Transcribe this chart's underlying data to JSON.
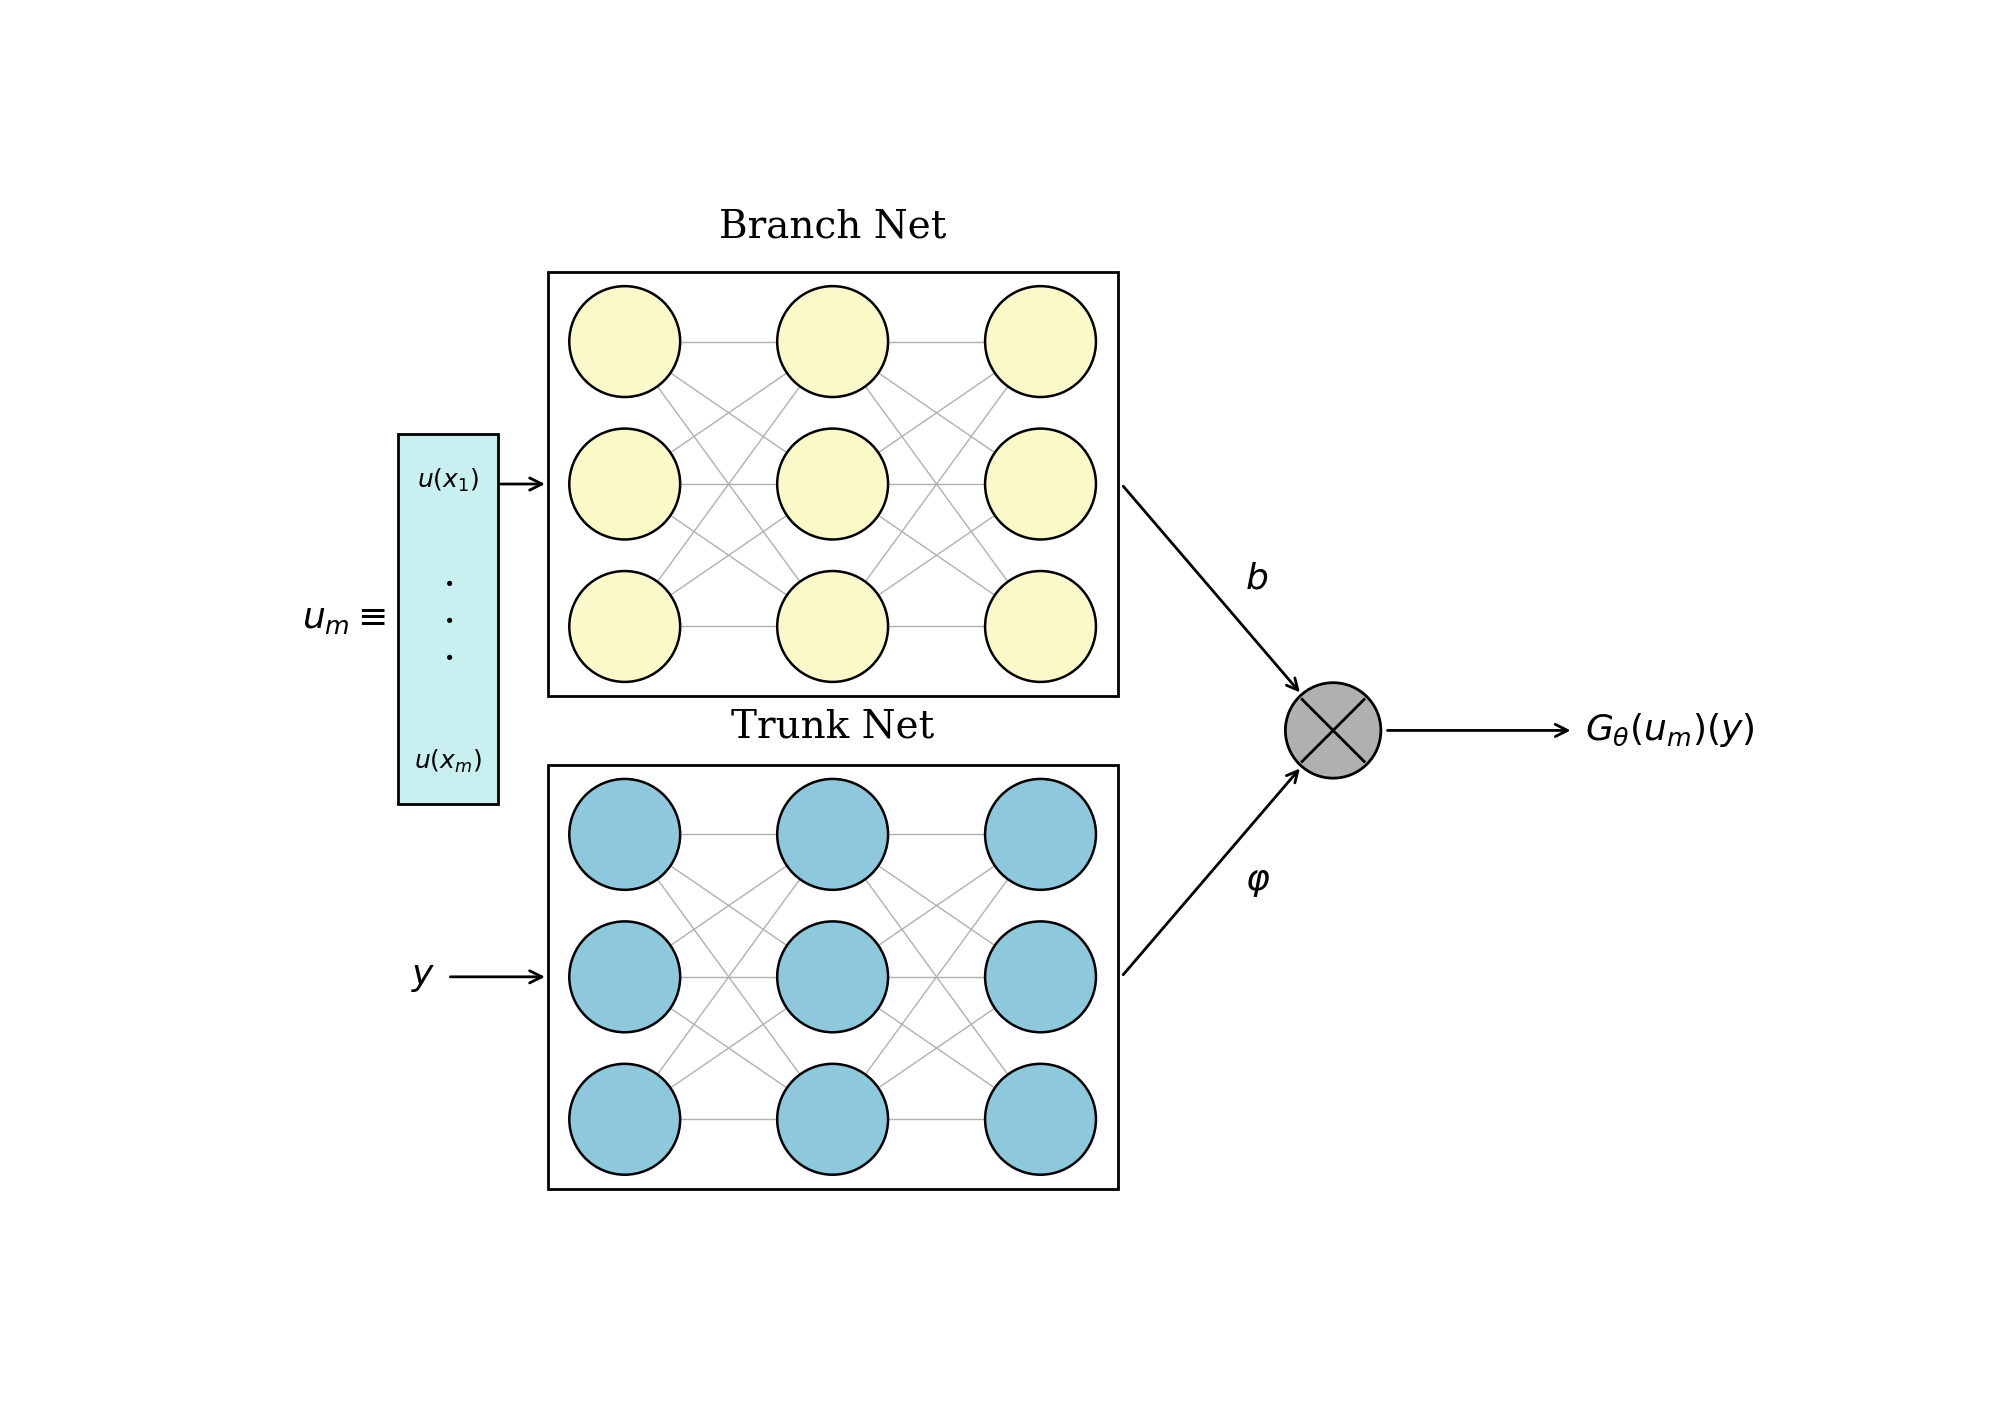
{
  "branch_net_label": "Branch Net",
  "trunk_net_label": "Trunk Net",
  "branch_node_color": "#FAFAC8",
  "trunk_node_color": "#8DC8DC",
  "input_box_color": "#C8F0F0",
  "multiply_circle_color": "#B0B0B0",
  "node_edge_color": "#000000",
  "connection_color": "#B0B0B0",
  "background_color": "#FFFFFF",
  "branch_rows": 3,
  "branch_cols": 3,
  "trunk_rows": 3,
  "trunk_cols": 3
}
